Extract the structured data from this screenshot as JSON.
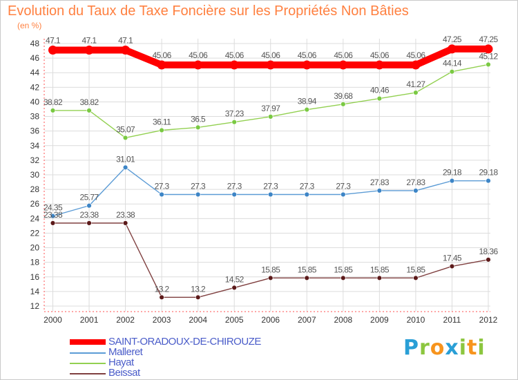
{
  "header": {
    "title": "Evolution du Taux de Taxe Foncière sur les Propriétés Non Bâties",
    "unit": "(en %)"
  },
  "chart_data": {
    "type": "line",
    "x": [
      "2000",
      "2001",
      "2002",
      "2003",
      "2004",
      "2005",
      "2006",
      "2007",
      "2008",
      "2009",
      "2010",
      "2011",
      "2012"
    ],
    "ylim": [
      12,
      48
    ],
    "yticks": [
      12,
      14,
      16,
      18,
      20,
      22,
      24,
      26,
      28,
      30,
      32,
      34,
      36,
      38,
      40,
      42,
      44,
      46,
      48
    ],
    "grid": true,
    "series": [
      {
        "name": "SAINT-ORADOUX-DE-CHIROUZE",
        "color": "#ff0000",
        "highlight": true,
        "values": [
          47.1,
          47.1,
          47.1,
          45.06,
          45.06,
          45.06,
          45.06,
          45.06,
          45.06,
          45.06,
          45.06,
          47.25,
          47.25
        ],
        "labels": [
          "47.1",
          "47.1",
          "47.1",
          "45.06",
          "45.06",
          "45.06",
          "45.06",
          "45.06",
          "45.06",
          "45.06",
          "45.06",
          "47.25",
          "47.25"
        ]
      },
      {
        "name": "Malleret",
        "color": "#5b9bd5",
        "dot": "#3d85c6",
        "values": [
          24.35,
          25.77,
          31.01,
          27.3,
          27.3,
          27.3,
          27.3,
          27.3,
          27.3,
          27.83,
          27.83,
          29.18,
          29.18
        ],
        "labels": [
          "24.35",
          "25.77",
          "31.01",
          "27.3",
          "27.3",
          "27.3",
          "27.3",
          "27.3",
          "27.3",
          "27.83",
          "27.83",
          "29.18",
          "29.18"
        ]
      },
      {
        "name": "Hayat",
        "color": "#92d050",
        "dot": "#7ac943",
        "values": [
          38.82,
          38.82,
          35.07,
          36.11,
          36.5,
          37.23,
          37.97,
          38.94,
          39.68,
          40.46,
          41.27,
          44.14,
          45.12
        ],
        "labels": [
          "38.82",
          "38.82",
          "35.07",
          "36.11",
          "36.5",
          "37.23",
          "37.97",
          "38.94",
          "39.68",
          "40.46",
          "41.27",
          "44.14",
          "45.12"
        ]
      },
      {
        "name": "Beissat",
        "color": "#7f3f3f",
        "dot": "#5c1a1a",
        "values": [
          23.38,
          23.38,
          23.38,
          13.2,
          13.2,
          14.52,
          15.85,
          15.85,
          15.85,
          15.85,
          15.85,
          17.45,
          18.36
        ],
        "labels": [
          "23.38",
          "23.38",
          "23.38",
          "13.2",
          "13.2",
          "14.52",
          "15.85",
          "15.85",
          "15.85",
          "15.85",
          "15.85",
          "17.45",
          "18.36"
        ]
      }
    ]
  },
  "legend": [
    {
      "label": "SAINT-ORADOUX-DE-CHIROUZE",
      "color": "#ff0000"
    },
    {
      "label": "Malleret",
      "color": "#5b9bd5"
    },
    {
      "label": "Hayat",
      "color": "#92d050"
    },
    {
      "label": "Beissat",
      "color": "#7f3f3f"
    }
  ],
  "logo": {
    "letters": [
      "P",
      "r",
      "o",
      "x",
      "i",
      "t",
      "i"
    ],
    "colors": [
      "#2a9fd6",
      "#8cc63f",
      "#f7941d",
      "#2a9fd6",
      "#8cc63f",
      "#f7941d",
      "#8cc63f"
    ]
  }
}
